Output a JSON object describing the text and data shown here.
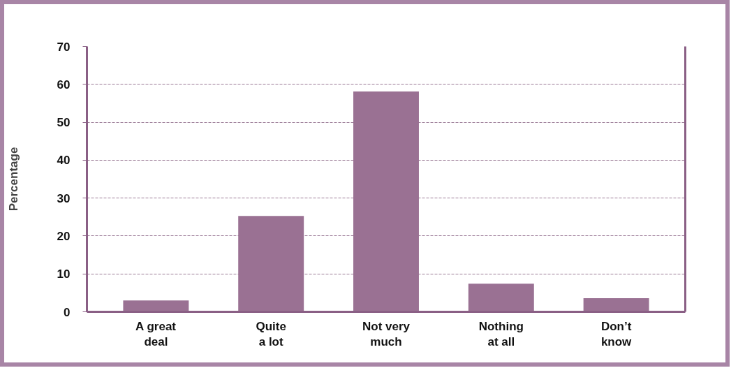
{
  "chart_data": {
    "type": "bar",
    "ylabel": "Percentage",
    "categories": [
      "A great\ndeal",
      "Quite\na lot",
      "Not very\nmuch",
      "Nothing\nat all",
      "Don’t\nknow"
    ],
    "values": [
      3.0,
      25.3,
      58.1,
      7.4,
      3.6
    ],
    "color": "#9a7193",
    "ylim": [
      0,
      70
    ],
    "yticks": [
      0,
      10,
      20,
      30,
      40,
      50,
      60,
      70
    ],
    "grid": "y"
  }
}
